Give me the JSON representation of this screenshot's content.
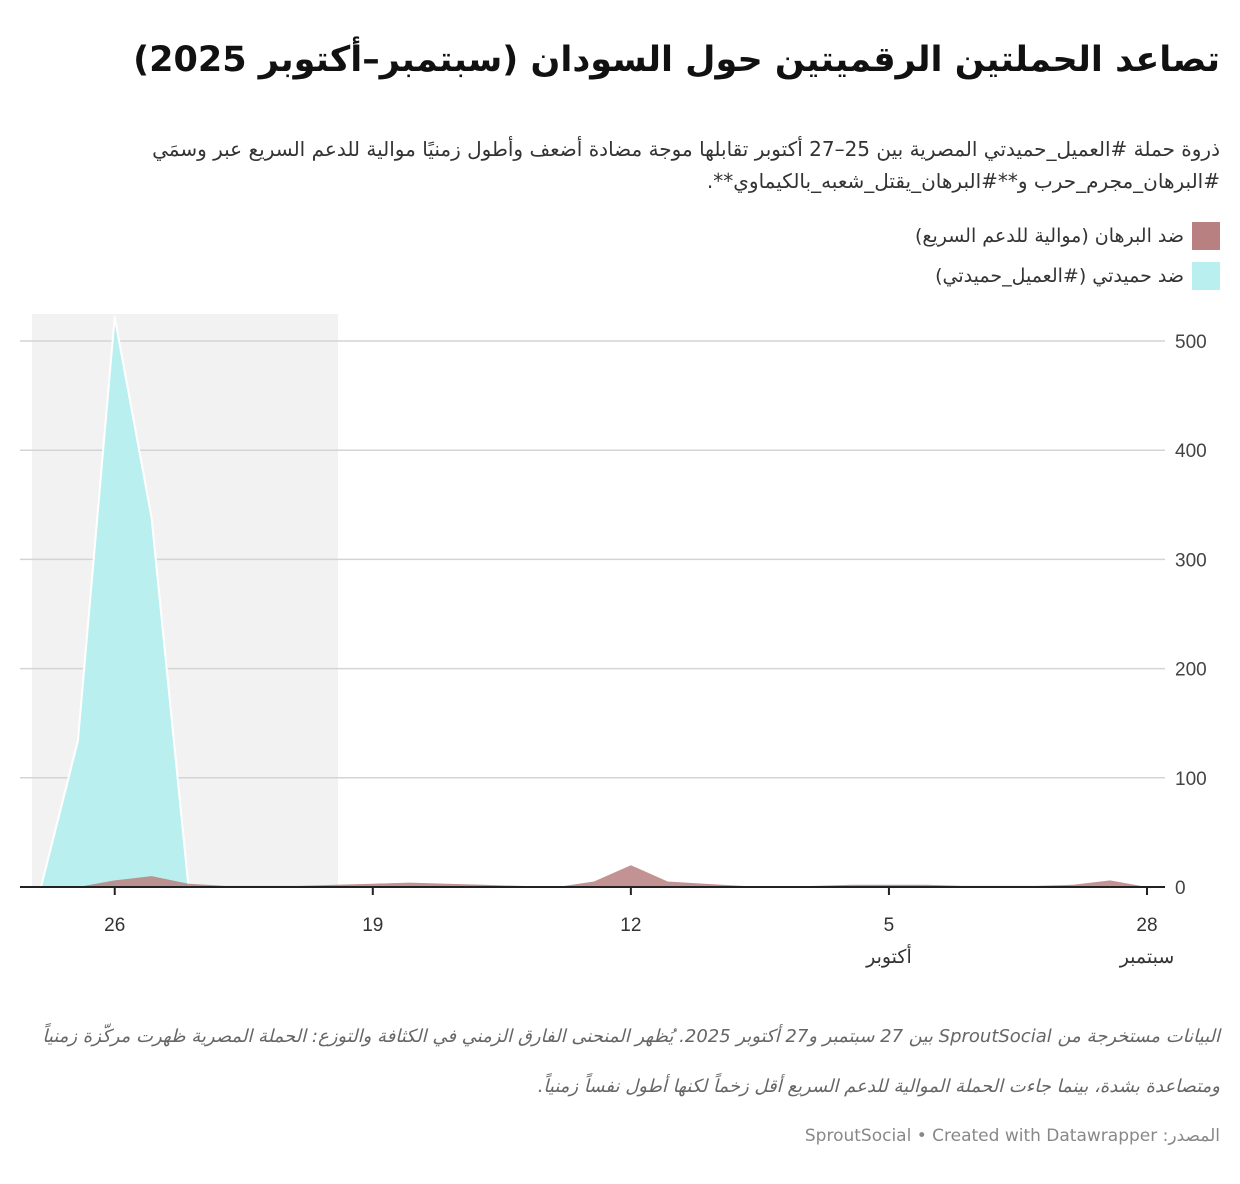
{
  "header": {
    "title": "تصاعد الحملتين الرقميتين حول السودان (سبتمبر–أكتوبر 2025)",
    "subtitle": "ذروة حملة #العميل_حميدتي المصرية بين 25–27 أكتوبر تقابلها موجة مضادة أضعف وأطول زمنيًا موالية للدعم السريع عبر وسمَي #البرهان_مجرم_حرب و**#البرهان_يقتل_شعبه_بالكيماوي**."
  },
  "chart_data": {
    "type": "area",
    "title": "تصاعد الحملتين الرقميتين حول السودان (سبتمبر–أكتوبر 2025)",
    "xlabel": "",
    "ylabel": "",
    "ylim": [
      0,
      520
    ],
    "yticks": [
      "0",
      "100",
      "200",
      "300",
      "400",
      "500"
    ],
    "ytick_values": [
      0,
      100,
      200,
      300,
      400,
      500
    ],
    "xticks": [
      {
        "date": "2025-10-26",
        "label": "26",
        "sub": ""
      },
      {
        "date": "2025-10-19",
        "label": "19",
        "sub": ""
      },
      {
        "date": "2025-10-12",
        "label": "12",
        "sub": ""
      },
      {
        "date": "2025-10-05",
        "label": "5",
        "sub": "أكتوبر"
      },
      {
        "date": "2025-09-28",
        "label": "28",
        "sub": "سبتمبر"
      }
    ],
    "x_reversed": true,
    "xlim": [
      "2025-09-28",
      "2025-10-28"
    ],
    "highlight_range": [
      "2025-10-20",
      "2025-10-28"
    ],
    "grid": true,
    "legend_placement": "top-right",
    "x": [
      "2025-09-28",
      "2025-09-29",
      "2025-09-30",
      "2025-10-01",
      "2025-10-02",
      "2025-10-03",
      "2025-10-04",
      "2025-10-05",
      "2025-10-06",
      "2025-10-07",
      "2025-10-08",
      "2025-10-09",
      "2025-10-10",
      "2025-10-11",
      "2025-10-12",
      "2025-10-13",
      "2025-10-14",
      "2025-10-15",
      "2025-10-16",
      "2025-10-17",
      "2025-10-18",
      "2025-10-19",
      "2025-10-20",
      "2025-10-21",
      "2025-10-22",
      "2025-10-23",
      "2025-10-24",
      "2025-10-25",
      "2025-10-26",
      "2025-10-27",
      "2025-10-28"
    ],
    "series": [
      {
        "name": "ضد البرهان (موالية للدعم السريع)",
        "color": "#b88080",
        "values": [
          0,
          6,
          2,
          1,
          1,
          1,
          2,
          2,
          2,
          1,
          0,
          1,
          3,
          5,
          20,
          5,
          0,
          1,
          2,
          3,
          4,
          3,
          2,
          1,
          1,
          1,
          3,
          10,
          6,
          0,
          0
        ]
      },
      {
        "name": "ضد حميدتي (#العميل_حميدتي)",
        "color": "#b9f0ef",
        "values": [
          0,
          0,
          0,
          0,
          0,
          0,
          0,
          0,
          0,
          0,
          0,
          0,
          0,
          0,
          0,
          0,
          0,
          0,
          0,
          0,
          0,
          0,
          0,
          0,
          0,
          0,
          0,
          338,
          522,
          134,
          0
        ]
      }
    ]
  },
  "legend": [
    {
      "label": "ضد البرهان (موالية للدعم السريع)",
      "color": "#b88080"
    },
    {
      "label": "ضد حميدتي (#العميل_حميدتي)",
      "color": "#b9f0ef"
    }
  ],
  "footer": {
    "notes": "البيانات مستخرجة من SproutSocial بين 27 سبتمبر و27 أكتوبر 2025. يُظهر المنحنى الفارق الزمني في الكثافة والتوزع: الحملة المصرية ظهرت مركّزة زمنياً ومتصاعدة بشدة، بينما جاءت الحملة الموالية للدعم السريع أقل زخماً لكنها أطول نفساً زمنياً.",
    "source_label": "المصدر:",
    "source": "SproutSocial • Created with Datawrapper"
  }
}
